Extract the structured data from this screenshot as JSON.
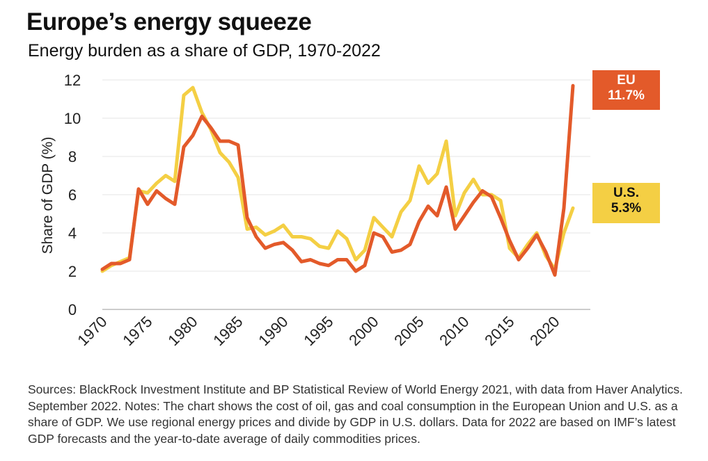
{
  "chart_data": {
    "type": "line",
    "title": "Europe’s energy squeeze",
    "subtitle": "Energy burden as a share of GDP, 1970-2022",
    "xlabel": "",
    "ylabel": "Share of GDP (%)",
    "xlim": [
      1970,
      2022
    ],
    "ylim": [
      0,
      12
    ],
    "yticks": [
      0,
      2,
      4,
      6,
      8,
      10,
      12
    ],
    "xticks": [
      1970,
      1975,
      1980,
      1985,
      1990,
      1995,
      2000,
      2005,
      2010,
      2015,
      2020
    ],
    "x": [
      1970,
      1971,
      1972,
      1973,
      1974,
      1975,
      1976,
      1977,
      1978,
      1979,
      1980,
      1981,
      1982,
      1983,
      1984,
      1985,
      1986,
      1987,
      1988,
      1989,
      1990,
      1991,
      1992,
      1993,
      1994,
      1995,
      1996,
      1997,
      1998,
      1999,
      2000,
      2001,
      2002,
      2003,
      2004,
      2005,
      2006,
      2007,
      2008,
      2009,
      2010,
      2011,
      2012,
      2013,
      2014,
      2015,
      2016,
      2017,
      2018,
      2019,
      2020,
      2021,
      2022
    ],
    "series": [
      {
        "name": "EU",
        "color": "#e35a2a",
        "values": [
          2.1,
          2.4,
          2.4,
          2.6,
          6.3,
          5.5,
          6.2,
          5.8,
          5.5,
          8.5,
          9.1,
          10.1,
          9.5,
          8.8,
          8.8,
          8.6,
          4.8,
          3.8,
          3.2,
          3.4,
          3.5,
          3.1,
          2.5,
          2.6,
          2.4,
          2.3,
          2.6,
          2.6,
          2.0,
          2.3,
          4.0,
          3.8,
          3.0,
          3.1,
          3.4,
          4.6,
          5.4,
          4.9,
          6.4,
          4.2,
          4.9,
          5.6,
          6.2,
          5.9,
          4.8,
          3.6,
          2.6,
          3.2,
          3.9,
          3.0,
          1.8,
          5.3,
          11.7
        ]
      },
      {
        "name": "U.S.",
        "color": "#f4cf44",
        "values": [
          2.0,
          2.3,
          2.5,
          2.7,
          6.2,
          6.1,
          6.6,
          7.0,
          6.7,
          11.2,
          11.6,
          10.3,
          9.4,
          8.2,
          7.7,
          6.9,
          4.2,
          4.3,
          3.9,
          4.1,
          4.4,
          3.8,
          3.8,
          3.7,
          3.3,
          3.2,
          4.1,
          3.7,
          2.6,
          3.1,
          4.8,
          4.3,
          3.8,
          5.1,
          5.7,
          7.5,
          6.6,
          7.1,
          8.8,
          4.9,
          6.1,
          6.8,
          6.0,
          6.0,
          5.7,
          3.2,
          2.7,
          3.4,
          4.0,
          2.8,
          2.1,
          4.0,
          5.3
        ]
      }
    ],
    "legend": [
      {
        "name": "EU",
        "value_label": "11.7%"
      },
      {
        "name": "U.S.",
        "value_label": "5.3%"
      }
    ]
  },
  "footer": {
    "sources": "Sources: BlackRock Investment Institute and BP Statistical Review of World Energy 2021, with data from Haver Analytics. September 2022. Notes: The chart shows the cost of oil, gas and coal consumption in the European Union and U.S. as a share of GDP. We use regional energy prices and divide by GDP in U.S. dollars. Data for 2022 are based on IMF’s latest GDP forecasts and the year-to-date average of daily commodities prices."
  }
}
